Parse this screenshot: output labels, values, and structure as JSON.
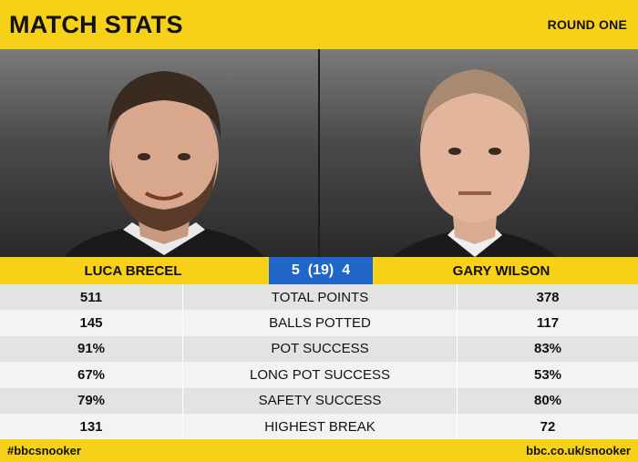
{
  "header": {
    "title": "MATCH STATS",
    "round": "ROUND ONE"
  },
  "players": [
    {
      "name": "LUCA BRECEL"
    },
    {
      "name": "GARY WILSON"
    }
  ],
  "score": {
    "left": "5",
    "middle": "(19)",
    "right": "4"
  },
  "stats": [
    {
      "label": "TOTAL POINTS",
      "left": "511",
      "right": "378"
    },
    {
      "label": "BALLS POTTED",
      "left": "145",
      "right": "117"
    },
    {
      "label": "POT SUCCESS",
      "left": "91%",
      "right": "83%"
    },
    {
      "label": "LONG POT SUCCESS",
      "left": "67%",
      "right": "53%"
    },
    {
      "label": "SAFETY SUCCESS",
      "left": "79%",
      "right": "80%"
    },
    {
      "label": "HIGHEST BREAK",
      "left": "131",
      "right": "72"
    }
  ],
  "footer": {
    "left": "#bbcsnooker",
    "right": "bbc.co.uk/snooker"
  },
  "colors": {
    "accent_yellow": "#f7d117",
    "score_blue": "#1f66c8"
  }
}
